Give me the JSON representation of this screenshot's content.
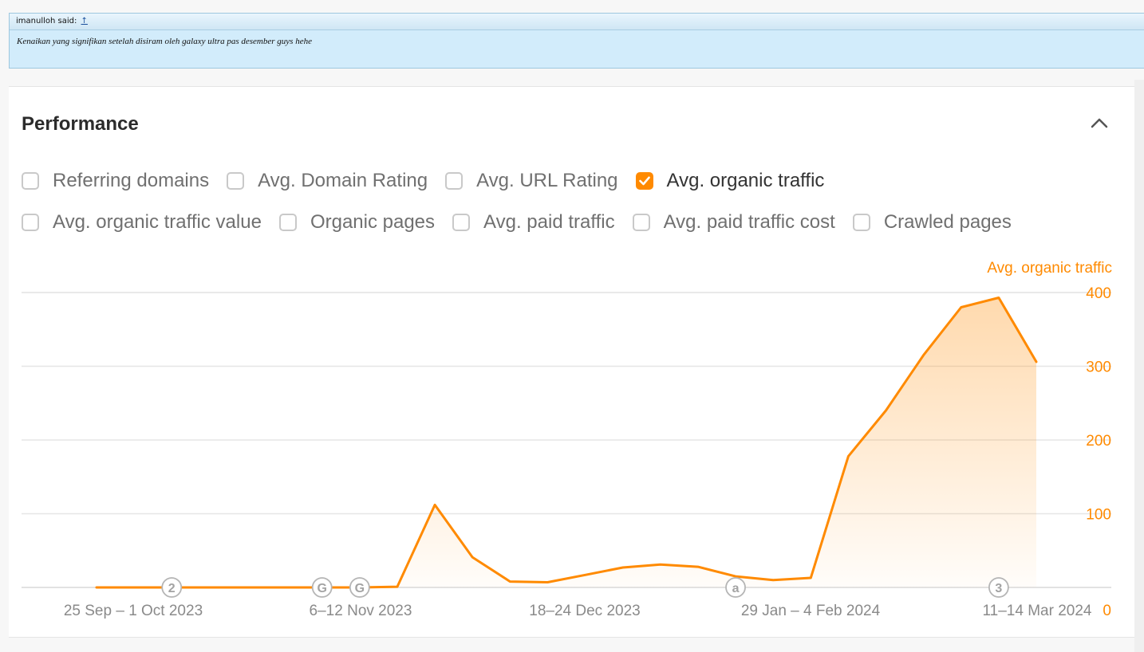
{
  "quote": {
    "author_prefix": "imanulloh said:",
    "up_link": "↑",
    "text": "Kenaikan yang signifikan setelah disiram oleh galaxy ultra pas desember guys hehe"
  },
  "panel": {
    "title": "Performance",
    "collapse_icon": "chevron-up-icon"
  },
  "metrics_row1": [
    {
      "label": "Referring domains",
      "checked": false
    },
    {
      "label": "Avg. Domain Rating",
      "checked": false
    },
    {
      "label": "Avg. URL Rating",
      "checked": false
    },
    {
      "label": "Avg. organic traffic",
      "checked": true
    }
  ],
  "metrics_row2": [
    {
      "label": "Avg. organic traffic value",
      "checked": false
    },
    {
      "label": "Organic pages",
      "checked": false
    },
    {
      "label": "Avg. paid traffic",
      "checked": false
    },
    {
      "label": "Avg. paid traffic cost",
      "checked": false
    },
    {
      "label": "Crawled pages",
      "checked": false
    }
  ],
  "colors": {
    "accent": "#ff8a00",
    "grid": "#e6e6e6",
    "marker": "#b5b5b5"
  },
  "chart_data": {
    "type": "area",
    "ylabel": "Avg. organic traffic",
    "ylim": [
      0,
      400
    ],
    "yticks": [
      0,
      100,
      200,
      300,
      400
    ],
    "x_tick_labels": [
      "25 Sep – 1 Oct 2023",
      "6–12 Nov 2023",
      "18–24 Dec 2023",
      "29 Jan – 4 Feb 2024",
      "11–14 Mar 2024"
    ],
    "series": [
      {
        "values": [
          0,
          0,
          0,
          0,
          0,
          0,
          0,
          0,
          1,
          112,
          41,
          8,
          7,
          17,
          27,
          31,
          28,
          15,
          10,
          13,
          178,
          240,
          315,
          380,
          393,
          306
        ]
      }
    ],
    "annotations": [
      {
        "label": "2",
        "at_index": 2
      },
      {
        "label": "G",
        "at_index": 6
      },
      {
        "label": "G",
        "at_index": 7
      },
      {
        "label": "a",
        "at_index": 17
      },
      {
        "label": "3",
        "at_index": 24
      }
    ]
  }
}
